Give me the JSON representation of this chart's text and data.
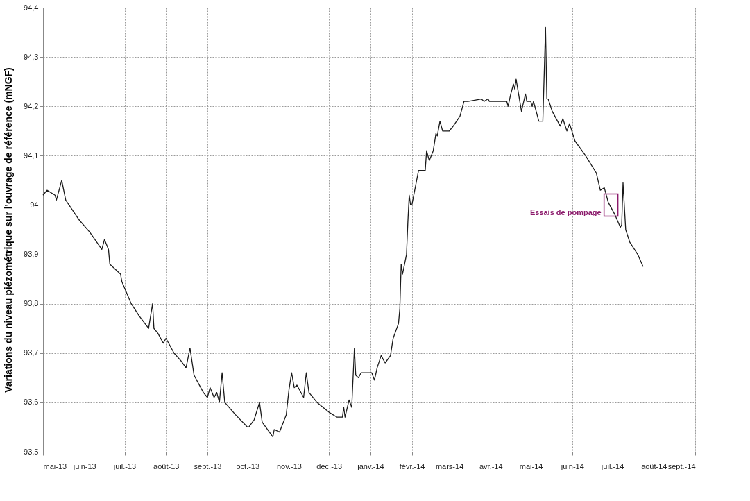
{
  "chart_data": {
    "type": "line",
    "ylabel": "Variations du niveau piézométrique sur l'ouvrage de référence (mNGF)",
    "xlim": [
      "2013-05-01",
      "2014-09-01"
    ],
    "xticks": [
      {
        "value": "2013-05-01",
        "label": "mai-13"
      },
      {
        "value": "2013-06-01",
        "label": "juin-13"
      },
      {
        "value": "2013-07-01",
        "label": "juil.-13"
      },
      {
        "value": "2013-08-01",
        "label": "août-13"
      },
      {
        "value": "2013-09-01",
        "label": "sept.-13"
      },
      {
        "value": "2013-10-01",
        "label": "oct.-13"
      },
      {
        "value": "2013-11-01",
        "label": "nov.-13"
      },
      {
        "value": "2013-12-01",
        "label": "déc.-13"
      },
      {
        "value": "2014-01-01",
        "label": "janv.-14"
      },
      {
        "value": "2014-02-01",
        "label": "févr.-14"
      },
      {
        "value": "2014-03-01",
        "label": "mars-14"
      },
      {
        "value": "2014-04-01",
        "label": "avr.-14"
      },
      {
        "value": "2014-05-01",
        "label": "mai-14"
      },
      {
        "value": "2014-06-01",
        "label": "juin-14"
      },
      {
        "value": "2014-07-01",
        "label": "juil.-14"
      },
      {
        "value": "2014-08-01",
        "label": "août-14"
      },
      {
        "value": "2014-09-01",
        "label": "sept.-14"
      }
    ],
    "ylim": [
      93.5,
      94.4
    ],
    "yticks": [
      {
        "value": 93.5,
        "label": "93,5"
      },
      {
        "value": 93.6,
        "label": "93,6"
      },
      {
        "value": 93.7,
        "label": "93,7"
      },
      {
        "value": 93.8,
        "label": "93,8"
      },
      {
        "value": 93.9,
        "label": "93,9"
      },
      94,
      {
        "value": 94.1,
        "label": "94,1"
      },
      {
        "value": 94.2,
        "label": "94,2"
      },
      {
        "value": 94.3,
        "label": "94,3"
      },
      {
        "value": 94.4,
        "label": "94,4"
      }
    ],
    "grid": true,
    "marker": "none",
    "line_style": "solid",
    "annotations": [
      {
        "text": "Essais de pompage",
        "x": "2014-06-30",
        "y": 94.0
      }
    ],
    "series": [
      {
        "color": "#1a1a1a",
        "x": [
          "2013-05-01",
          "2013-05-04",
          "2013-05-10",
          "2013-05-11",
          "2013-05-15",
          "2013-05-18",
          "2013-05-23",
          "2013-05-28",
          "2013-06-05",
          "2013-06-14",
          "2013-06-16",
          "2013-06-19",
          "2013-06-20",
          "2013-06-28",
          "2013-06-29",
          "2013-07-06",
          "2013-07-12",
          "2013-07-19",
          "2013-07-22",
          "2013-07-23",
          "2013-07-26",
          "2013-07-30",
          "2013-08-01",
          "2013-08-07",
          "2013-08-12",
          "2013-08-16",
          "2013-08-19",
          "2013-08-22",
          "2013-08-29",
          "2013-09-01",
          "2013-09-03",
          "2013-09-06",
          "2013-09-08",
          "2013-09-10",
          "2013-09-12",
          "2013-09-14",
          "2013-09-22",
          "2013-10-01",
          "2013-10-02",
          "2013-10-06",
          "2013-10-10",
          "2013-10-12",
          "2013-10-20",
          "2013-10-21",
          "2013-10-25",
          "2013-10-30",
          "2013-11-01",
          "2013-11-03",
          "2013-11-05",
          "2013-11-07",
          "2013-11-12",
          "2013-11-14",
          "2013-11-16",
          "2013-11-22",
          "2013-12-01",
          "2013-12-07",
          "2013-12-11",
          "2013-12-12",
          "2013-12-13",
          "2013-12-16",
          "2013-12-18",
          "2013-12-20",
          "2013-12-21",
          "2013-12-23",
          "2013-12-25",
          "2014-01-02",
          "2014-01-04",
          "2014-01-06",
          "2014-01-09",
          "2014-01-12",
          "2014-01-16",
          "2014-01-18",
          "2014-01-22",
          "2014-01-23",
          "2014-01-24",
          "2014-01-25",
          "2014-01-28",
          "2014-01-29",
          "2014-01-30",
          "2014-01-31",
          "2014-02-01",
          "2014-02-06",
          "2014-02-11",
          "2014-02-12",
          "2014-02-14",
          "2014-02-17",
          "2014-02-19",
          "2014-02-20",
          "2014-02-22",
          "2014-02-24",
          "2014-03-01",
          "2014-03-04",
          "2014-03-09",
          "2014-03-12",
          "2014-03-15",
          "2014-03-25",
          "2014-03-27",
          "2014-03-30",
          "2014-03-31",
          "2014-04-13",
          "2014-04-14",
          "2014-04-16",
          "2014-04-18",
          "2014-04-19",
          "2014-04-20",
          "2014-04-24",
          "2014-04-27",
          "2014-04-28",
          "2014-05-01",
          "2014-05-02",
          "2014-05-03",
          "2014-05-07",
          "2014-05-10",
          "2014-05-12",
          "2014-05-13",
          "2014-05-14",
          "2014-05-17",
          "2014-05-23",
          "2014-05-25",
          "2014-05-28",
          "2014-05-30",
          "2014-06-03",
          "2014-06-11",
          "2014-06-19",
          "2014-06-22",
          "2014-06-25",
          "2014-06-28",
          "2014-07-03",
          "2014-07-07",
          "2014-07-08",
          "2014-07-09",
          "2014-07-11",
          "2014-07-14",
          "2014-07-20",
          "2014-07-24"
        ],
        "values": [
          94.02,
          94.03,
          94.02,
          94.01,
          94.05,
          94.01,
          93.99,
          93.97,
          93.945,
          93.91,
          93.93,
          93.91,
          93.88,
          93.86,
          93.845,
          93.8,
          93.775,
          93.75,
          93.8,
          93.75,
          93.74,
          93.72,
          93.73,
          93.7,
          93.685,
          93.67,
          93.71,
          93.655,
          93.62,
          93.61,
          93.63,
          93.61,
          93.62,
          93.6,
          93.66,
          93.6,
          93.575,
          93.55,
          93.55,
          93.565,
          93.6,
          93.56,
          93.53,
          93.545,
          93.54,
          93.575,
          93.625,
          93.66,
          93.63,
          93.635,
          93.61,
          93.66,
          93.62,
          93.6,
          93.58,
          93.57,
          93.57,
          93.59,
          93.57,
          93.605,
          93.59,
          93.71,
          93.655,
          93.65,
          93.66,
          93.66,
          93.645,
          93.67,
          93.695,
          93.68,
          93.695,
          93.73,
          93.76,
          93.79,
          93.88,
          93.86,
          93.9,
          93.965,
          94.02,
          94.0,
          94.0,
          94.07,
          94.07,
          94.11,
          94.09,
          94.11,
          94.145,
          94.14,
          94.17,
          94.15,
          94.15,
          94.16,
          94.18,
          94.21,
          94.21,
          94.215,
          94.21,
          94.215,
          94.21,
          94.21,
          94.2,
          94.225,
          94.245,
          94.235,
          94.255,
          94.19,
          94.225,
          94.21,
          94.21,
          94.2,
          94.21,
          94.17,
          94.17,
          94.36,
          94.215,
          94.215,
          94.19,
          94.16,
          94.175,
          94.15,
          94.165,
          94.13,
          94.1,
          94.065,
          94.03,
          94.035,
          94.005,
          93.98,
          93.955,
          93.96,
          94.045,
          93.95,
          93.925,
          93.9,
          93.875
        ]
      }
    ]
  }
}
